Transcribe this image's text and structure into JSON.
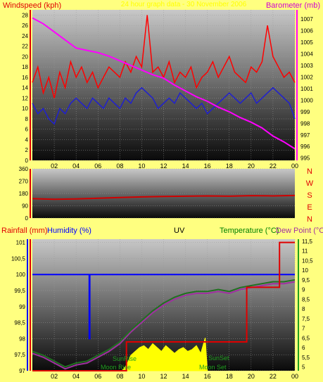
{
  "colors": {
    "background": "#ffff80",
    "wind": "#ff0000",
    "wind_avg": "#2020d0",
    "barometer": "#ff00ff",
    "direction": "#d00000",
    "rainfall": "#e00000",
    "humidity": "#0000ff",
    "temperature": "#207020",
    "dewpoint": "#a030a0",
    "uv": "#ffff00",
    "solar_text": "#20a020",
    "title_text": "#ffff00"
  },
  "chart_data": [
    {
      "type": "line",
      "title": "24 hour graph data - 30 November 2006",
      "ylabel_left": "Windspeed (kph)",
      "ylabel_right": "Barometer (mb)",
      "x_ticks": [
        "02",
        "04",
        "06",
        "08",
        "10",
        "12",
        "14",
        "16",
        "18",
        "20",
        "22",
        "00"
      ],
      "y_left_ticks": [
        "0",
        "2",
        "4",
        "6",
        "8",
        "10",
        "12",
        "14",
        "16",
        "18",
        "20",
        "22",
        "24",
        "26",
        "28"
      ],
      "y_right_ticks": [
        "995",
        "996",
        "997",
        "998",
        "999",
        "1000",
        "1001",
        "1002",
        "1003",
        "1004",
        "1005",
        "1006",
        "1007"
      ],
      "xlim": [
        0,
        24
      ],
      "ylim_left": [
        0,
        29
      ],
      "ylim_right": [
        994.8,
        1007.8
      ],
      "series": [
        {
          "key": "gust",
          "axis": "left",
          "x": [
            0.0,
            0.5,
            1.0,
            1.5,
            2.0,
            2.5,
            3.0,
            3.5,
            4.0,
            4.5,
            5.0,
            5.5,
            6.0,
            6.5,
            7.0,
            7.5,
            8.0,
            8.5,
            9.0,
            9.5,
            10.0,
            10.5,
            11.0,
            11.5,
            12.0,
            12.5,
            13.0,
            13.5,
            14.0,
            14.5,
            15.0,
            15.5,
            16.0,
            16.5,
            17.0,
            17.5,
            18.0,
            18.5,
            19.0,
            19.5,
            20.0,
            20.5,
            21.0,
            21.5,
            22.0,
            22.5,
            23.0,
            23.5,
            24.0
          ],
          "values": [
            15,
            18,
            13,
            16,
            12,
            17,
            14,
            19,
            16,
            18,
            15,
            17,
            14,
            16,
            18,
            17,
            16,
            19,
            17,
            20,
            18,
            28,
            17,
            18,
            16,
            19,
            15,
            17,
            16,
            18,
            14,
            16,
            17,
            19,
            16,
            18,
            20,
            17,
            16,
            15,
            18,
            17,
            19,
            26,
            20,
            18,
            16,
            17,
            15
          ]
        },
        {
          "key": "average",
          "axis": "left",
          "x": [
            0.0,
            0.5,
            1.0,
            1.5,
            2.0,
            2.5,
            3.0,
            3.5,
            4.0,
            4.5,
            5.0,
            5.5,
            6.0,
            6.5,
            7.0,
            7.5,
            8.0,
            8.5,
            9.0,
            9.5,
            10.0,
            10.5,
            11.0,
            11.5,
            12.0,
            12.5,
            13.0,
            13.5,
            14.0,
            14.5,
            15.0,
            15.5,
            16.0,
            16.5,
            17.0,
            17.5,
            18.0,
            18.5,
            19.0,
            19.5,
            20.0,
            20.5,
            21.0,
            21.5,
            22.0,
            22.5,
            23.0,
            23.5,
            24.0
          ],
          "values": [
            11,
            9,
            10,
            8,
            7,
            10,
            9,
            11,
            12,
            11,
            10,
            12,
            11,
            10,
            12,
            11,
            10,
            12,
            11,
            13,
            14,
            13,
            12,
            10,
            11,
            12,
            11,
            13,
            12,
            11,
            10,
            11,
            9,
            10,
            11,
            12,
            13,
            12,
            11,
            12,
            13,
            11,
            12,
            13,
            14,
            13,
            12,
            11,
            8
          ]
        },
        {
          "key": "barometer",
          "axis": "right",
          "x": [
            0.0,
            1.0,
            2.0,
            3.0,
            4.0,
            5.0,
            6.0,
            7.0,
            8.0,
            9.0,
            10.0,
            11.0,
            12.0,
            13.0,
            14.0,
            15.0,
            16.0,
            17.0,
            18.0,
            19.0,
            20.0,
            21.0,
            22.0,
            23.0,
            24.0
          ],
          "values": [
            1007.1,
            1006.6,
            1005.9,
            1005.2,
            1004.5,
            1004.3,
            1004.1,
            1003.8,
            1003.4,
            1003.0,
            1002.6,
            1002.2,
            1001.9,
            1001.3,
            1000.8,
            1000.3,
            999.9,
            999.4,
            999.0,
            998.5,
            998.1,
            997.6,
            996.9,
            996.4,
            995.8
          ]
        }
      ]
    },
    {
      "type": "line",
      "ylabel_right_letters": [
        "N",
        "W",
        "S",
        "E",
        "N"
      ],
      "y_ticks": [
        "0",
        "90",
        "180",
        "270",
        "360"
      ],
      "ylim": [
        0,
        360
      ],
      "xlim": [
        0,
        24
      ],
      "series": [
        {
          "key": "direction",
          "x": [
            0,
            2,
            4,
            6,
            8,
            10,
            12,
            14,
            16,
            18,
            20,
            22,
            24
          ],
          "values": [
            142,
            138,
            140,
            145,
            150,
            155,
            158,
            160,
            162,
            160,
            164,
            162,
            165
          ]
        }
      ]
    },
    {
      "type": "line",
      "label_rainfall": "Rainfall (mm)",
      "label_humidity": "Humidity (%)",
      "label_uv": "UV",
      "label_temperature": "Temperature (°C)",
      "label_dewpoint": "Dew Point (°C)",
      "label_sunrise": "SunRise",
      "label_sunset": "SunSet",
      "label_moonrise": "Moon Rise",
      "label_moonset": "Moon Set",
      "x_ticks": [
        "02",
        "04",
        "06",
        "08",
        "10",
        "12",
        "14",
        "16",
        "18",
        "20",
        "22",
        "00"
      ],
      "y_left_ticks": [
        "97",
        "97,5",
        "98",
        "98,5",
        "99",
        "99,5",
        "100",
        "100,5",
        "101"
      ],
      "y_right_ticks": [
        "5",
        "5,5",
        "6",
        "6,5",
        "7",
        "7,5",
        "8",
        "8,5",
        "9",
        "9,5",
        "10",
        "10,5",
        "11",
        "11,5"
      ],
      "xlim": [
        0,
        24
      ],
      "ylim_left": [
        97.0,
        101.1
      ],
      "ylim_right": [
        4.8,
        11.6
      ],
      "series": [
        {
          "key": "humidity",
          "axis": "left",
          "x": [
            0.0,
            5.2,
            5.2,
            5.25,
            5.25,
            24.0
          ],
          "values": [
            100,
            100,
            98.0,
            98.0,
            100,
            100
          ]
        },
        {
          "key": "rainfall",
          "axis": "left",
          "x": [
            0.0,
            3.4,
            3.4,
            8.6,
            8.6,
            19.6,
            19.6,
            22.6,
            22.6,
            24.0
          ],
          "values": [
            97.0,
            97.0,
            97.0,
            97.0,
            97.9,
            97.9,
            99.6,
            99.6,
            101.0,
            101.0
          ]
        },
        {
          "key": "temperature",
          "axis": "right",
          "x": [
            0.0,
            1.0,
            2.0,
            3.0,
            4.0,
            5.0,
            6.0,
            7.0,
            8.0,
            9.0,
            10.0,
            11.0,
            12.0,
            13.0,
            14.0,
            15.0,
            16.0,
            17.0,
            18.0,
            19.0,
            20.0,
            21.0,
            22.0,
            23.0,
            24.0
          ],
          "values": [
            5.8,
            5.6,
            5.3,
            5.0,
            5.2,
            5.3,
            5.6,
            5.9,
            6.3,
            6.9,
            7.4,
            7.9,
            8.3,
            8.6,
            8.8,
            8.9,
            8.9,
            9.0,
            8.9,
            9.1,
            9.2,
            9.3,
            9.4,
            9.4,
            9.5
          ]
        },
        {
          "key": "dewpoint",
          "axis": "right",
          "x": [
            0.0,
            1.0,
            2.0,
            3.0,
            4.0,
            5.0,
            6.0,
            7.0,
            8.0,
            9.0,
            10.0,
            11.0,
            12.0,
            13.0,
            14.0,
            15.0,
            16.0,
            17.0,
            18.0,
            19.0,
            20.0,
            21.0,
            22.0,
            23.0,
            24.0
          ],
          "values": [
            5.7,
            5.5,
            5.2,
            4.9,
            5.1,
            5.2,
            5.5,
            5.8,
            6.2,
            6.8,
            7.3,
            7.8,
            8.2,
            8.5,
            8.7,
            8.8,
            8.8,
            8.9,
            8.8,
            9.0,
            9.1,
            9.2,
            9.3,
            9.3,
            9.4
          ]
        },
        {
          "key": "uv",
          "axis": "right",
          "x": [
            8.2,
            8.6,
            9.0,
            9.4,
            9.8,
            10.2,
            10.6,
            11.0,
            11.4,
            11.8,
            12.2,
            12.6,
            13.0,
            13.4,
            13.8,
            14.2,
            14.6,
            15.0,
            15.4,
            15.8,
            16.0
          ],
          "values": [
            4.8,
            5.1,
            5.6,
            5.8,
            6.0,
            6.1,
            5.9,
            6.2,
            6.0,
            5.8,
            6.1,
            5.9,
            5.7,
            5.9,
            6.0,
            5.8,
            5.9,
            6.1,
            5.7,
            6.5,
            4.8
          ]
        }
      ]
    }
  ]
}
